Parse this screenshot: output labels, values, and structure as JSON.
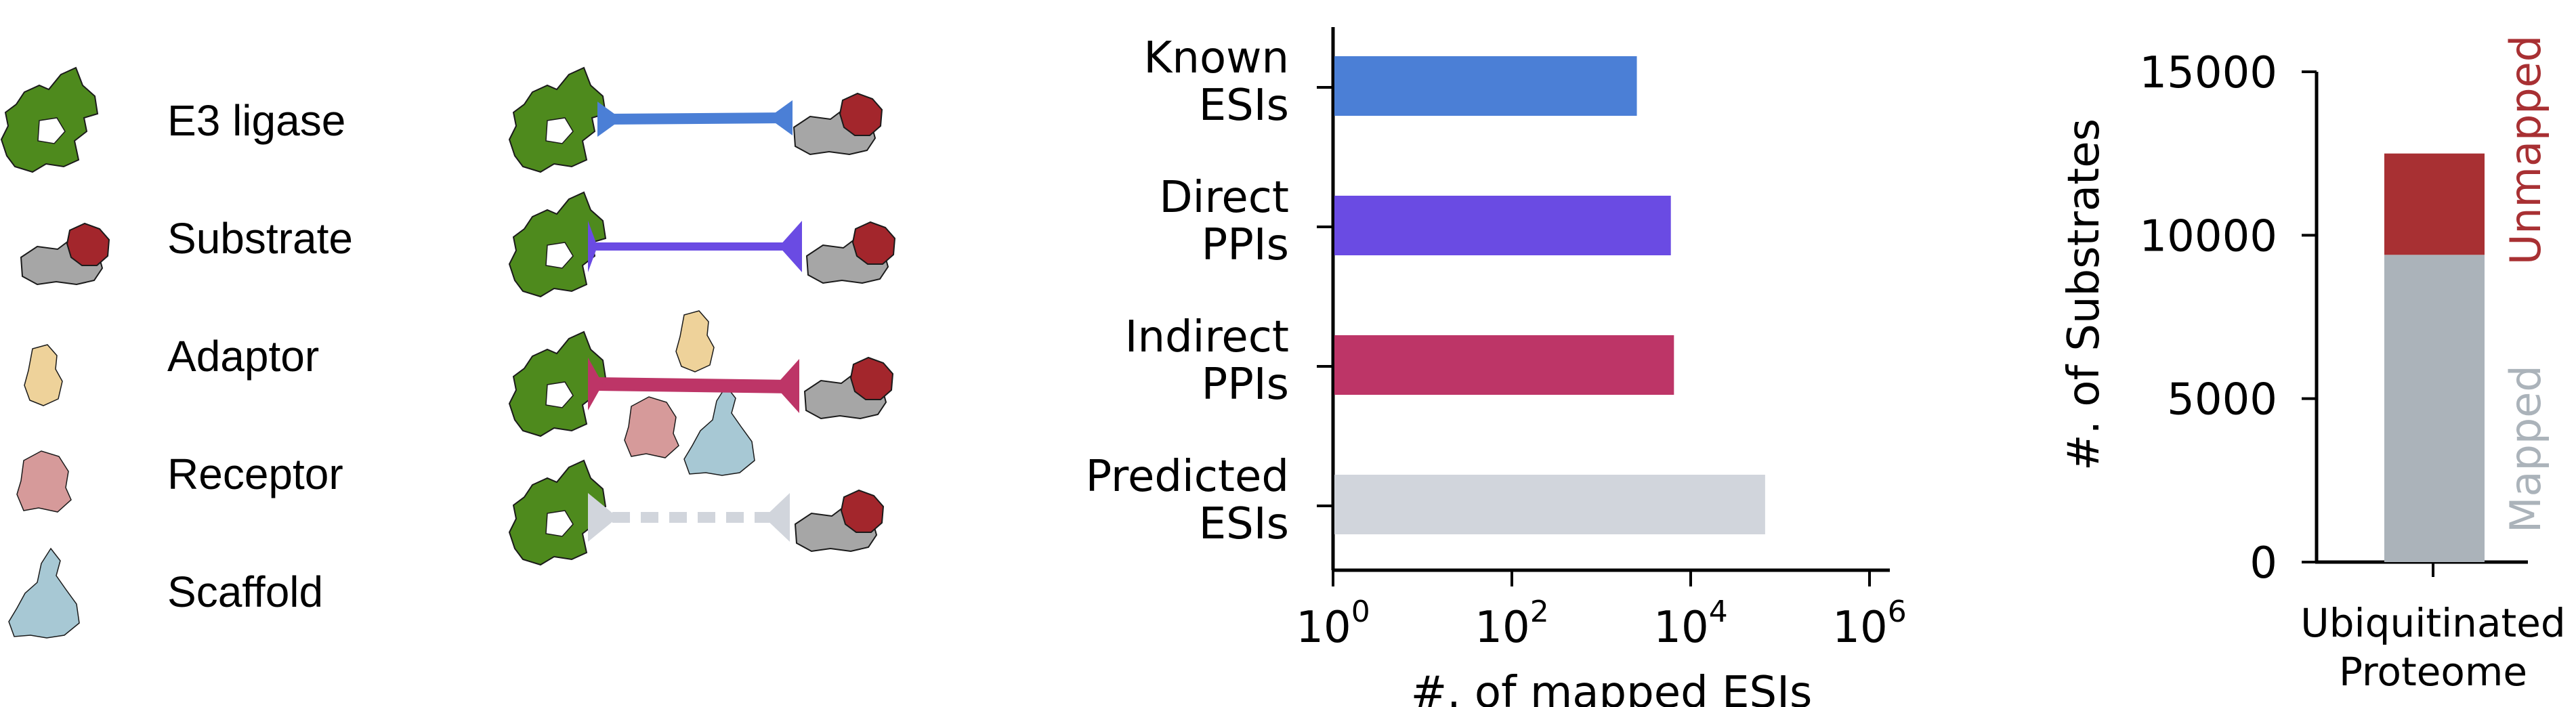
{
  "legend": {
    "items": [
      {
        "label": "E3 ligase",
        "icon": "e3-ligase-icon",
        "color": "#4e8a1d"
      },
      {
        "label": "Substrate",
        "icon": "substrate-icon",
        "color": "#a3262c"
      },
      {
        "label": "Adaptor",
        "icon": "adaptor-icon",
        "color": "#eed29a"
      },
      {
        "label": "Receptor",
        "icon": "receptor-icon",
        "color": "#d69a9a"
      },
      {
        "label": "Scaffold",
        "icon": "scaffold-icon",
        "color": "#a7c8d4"
      }
    ]
  },
  "schematic": {
    "rows": [
      {
        "type": "known-esi",
        "link_color": "#4b7fd6",
        "style": "solid"
      },
      {
        "type": "direct-ppi",
        "link_color": "#6a4be3",
        "style": "solid"
      },
      {
        "type": "indirect-ppi",
        "link_color": "#bd3567",
        "style": "solid"
      },
      {
        "type": "predicted-esi",
        "link_color": "#d1d5dc",
        "style": "dashed"
      }
    ]
  },
  "chart_data": [
    {
      "type": "bar",
      "orientation": "horizontal",
      "categories": [
        "Known\nESIs",
        "Direct\nPPIs",
        "Indirect\nPPIs",
        "Predicted\nESIs"
      ],
      "values": [
        2500,
        6000,
        6500,
        68000
      ],
      "colors": [
        "#4b7fd6",
        "#6a4be3",
        "#bd3567",
        "#d1d5dc"
      ],
      "xlabel": "#. of mapped ESIs",
      "xscale": "log",
      "xlim": [
        1,
        1000000
      ],
      "xticks": [
        {
          "base": "10",
          "exp": "0",
          "value": 1
        },
        {
          "base": "10",
          "exp": "2",
          "value": 100
        },
        {
          "base": "10",
          "exp": "4",
          "value": 10000
        },
        {
          "base": "10",
          "exp": "6",
          "value": 1000000
        }
      ]
    },
    {
      "type": "bar",
      "stacked": true,
      "categories": [
        "Ubiquitinated\nProteome"
      ],
      "series": [
        {
          "name": "Mapped",
          "values": [
            9400
          ],
          "color": "#abb3ba"
        },
        {
          "name": "Unmapped",
          "values": [
            3100
          ],
          "color": "#a83033"
        }
      ],
      "ylabel": "#. of Substrates",
      "ylim": [
        0,
        15000
      ],
      "yticks": [
        "0",
        "5000",
        "10000",
        "15000"
      ]
    }
  ]
}
